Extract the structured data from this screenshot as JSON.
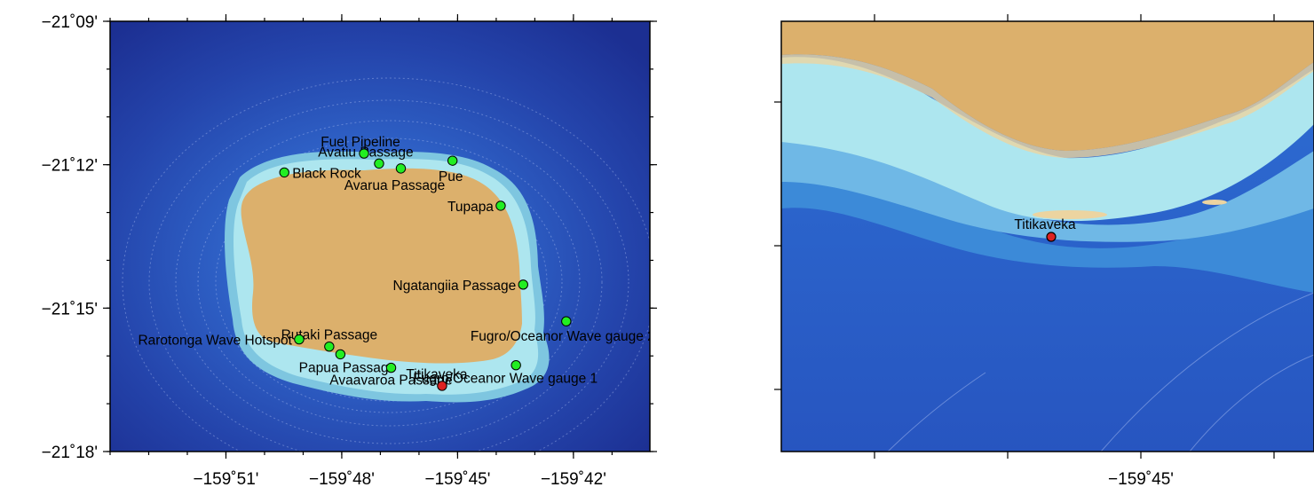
{
  "maps": [
    {
      "id": "overview",
      "extent": {
        "lon_min": -159.9,
        "lon_max": -159.667,
        "lat_min": -21.3,
        "lat_max": -21.15
      },
      "y_ticks": [
        {
          "label": "−21˚09'",
          "lat": -21.15
        },
        {
          "label": "−21˚12'",
          "lat": -21.2
        },
        {
          "label": "−21˚15'",
          "lat": -21.25
        },
        {
          "label": "−21˚18'",
          "lat": -21.3
        }
      ],
      "x_ticks": [
        {
          "label": "−159˚51'",
          "lon": -159.85
        },
        {
          "label": "−159˚48'",
          "lon": -159.8
        },
        {
          "label": "−159˚45'",
          "lon": -159.75
        },
        {
          "label": "−159˚42'",
          "lon": -159.7
        }
      ],
      "sites": [
        {
          "label": "Fuel Pipeline",
          "lon": -159.7904,
          "lat": -21.1961,
          "color": "#22ee22"
        },
        {
          "label": "Avatiu Passage",
          "lon": -159.7839,
          "lat": -21.1996,
          "color": "#22ee22"
        },
        {
          "label": "Avarua Passage",
          "lon": -159.7745,
          "lat": -21.2013,
          "color": "#22ee22"
        },
        {
          "label": "Pue",
          "lon": -159.7522,
          "lat": -21.1986,
          "color": "#22ee22"
        },
        {
          "label": "Black Rock",
          "lon": -159.8248,
          "lat": -21.2027,
          "color": "#22ee22"
        },
        {
          "label": "Tupapa",
          "lon": -159.7314,
          "lat": -21.2143,
          "color": "#22ee22"
        },
        {
          "label": "Ngatangiia Passage",
          "lon": -159.7217,
          "lat": -21.2418,
          "color": "#22ee22"
        },
        {
          "label": "Fugro/Oceanor Wave gauge 2",
          "lon": -159.7031,
          "lat": -21.2546,
          "color": "#22ee22"
        },
        {
          "label": "Rarotonga Wave Hotspot",
          "lon": -159.8184,
          "lat": -21.2609,
          "color": "#22ee22"
        },
        {
          "label": "Rutaki Passage",
          "lon": -159.8054,
          "lat": -21.2634,
          "color": "#22ee22"
        },
        {
          "label": "Papua Passage",
          "lon": -159.8006,
          "lat": -21.2661,
          "color": "#22ee22"
        },
        {
          "label": "Avaavaroa Passage",
          "lon": -159.7787,
          "lat": -21.2708,
          "color": "#22ee22"
        },
        {
          "label": "Titikaveka",
          "lon": -159.7567,
          "lat": -21.2771,
          "color": "#dd2222"
        },
        {
          "label": "Fugro/Oceanor Wave gauge 1",
          "lon": -159.7248,
          "lat": -21.2699,
          "color": "#22ee22"
        }
      ]
    },
    {
      "id": "inset",
      "x_ticks": [
        {
          "label": "−159˚45'",
          "lon": -159.75
        }
      ],
      "sites": [
        {
          "label": "Titikaveka",
          "color": "#dd2222"
        }
      ]
    }
  ],
  "colors": {
    "land": "#dcb06c",
    "land_light": "#ecd4a0",
    "reef": "#ade6ef",
    "shelf": "#7ec6e0",
    "ocean_mid": "#2f6ed0",
    "ocean_deep": "#1f3da0",
    "site_green": "#22ee22",
    "site_red": "#dd2222",
    "contour": "#c8d8ff"
  }
}
